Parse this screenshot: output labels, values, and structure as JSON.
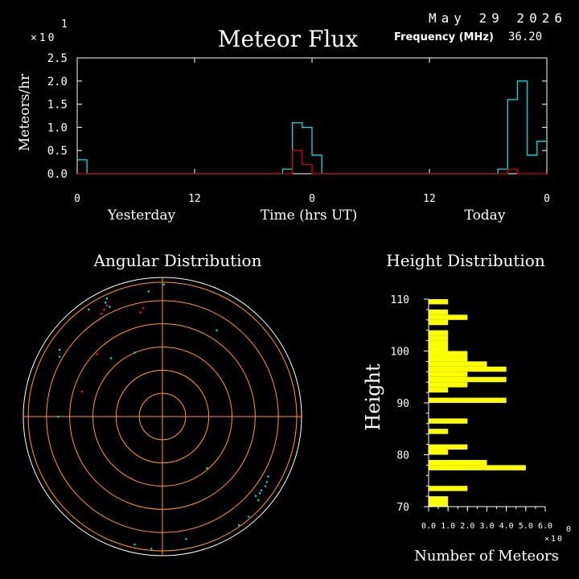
{
  "header": {
    "date": "May 29 2026",
    "title": "Meteor Flux",
    "frequency_label": "Frequency (MHz)",
    "frequency_value": "36.20",
    "y_multiplier": "×10",
    "y_exponent": "1"
  },
  "chart_data": [
    {
      "type": "line",
      "title": "Meteor Flux",
      "ylabel": "Meteors/hr",
      "xlabel": "Time (hrs UT)",
      "x_day_labels": [
        "Yesterday",
        "Today"
      ],
      "x_tick_labels": [
        "0",
        "12",
        "0",
        "12",
        "0"
      ],
      "y_tick_labels": [
        "0.0",
        "0.5",
        "1.0",
        "1.5",
        "2.0",
        "2.5"
      ],
      "ylim": [
        0,
        2.5
      ],
      "x_range_hours": [
        0,
        48
      ],
      "colors": {
        "series_1": "#00e0e0",
        "series_2": "#d00000",
        "axis": "#ffffff"
      },
      "series": [
        {
          "values": [
            0.3,
            0,
            0,
            0,
            0,
            0,
            0,
            0,
            0,
            0,
            0,
            0,
            0,
            0,
            0,
            0,
            0,
            0,
            0,
            0,
            0,
            0.1,
            1.1,
            1.0,
            0.4,
            0,
            0,
            0,
            0,
            0,
            0,
            0,
            0,
            0,
            0,
            0,
            0,
            0,
            0,
            0,
            0,
            0,
            0,
            0.1,
            1.6,
            2.0,
            0.4,
            0.7
          ]
        },
        {
          "values": [
            0,
            0,
            0,
            0,
            0,
            0,
            0,
            0,
            0,
            0,
            0,
            0,
            0,
            0,
            0,
            0,
            0,
            0,
            0,
            0,
            0,
            0,
            0.5,
            0.2,
            0,
            0,
            0,
            0,
            0,
            0,
            0,
            0,
            0,
            0,
            0,
            0,
            0,
            0,
            0,
            0,
            0,
            0,
            0,
            0,
            0.1,
            0,
            0,
            0
          ]
        }
      ]
    },
    {
      "type": "scatter",
      "title": "Angular Distribution",
      "colors": {
        "grid": "#ff9a30",
        "cyan": "#00e0e0",
        "red": "#e02020",
        "outer": "#ffffff"
      },
      "points_cyan": [
        [
          -0.38,
          0.79
        ],
        [
          -0.41,
          0.82
        ],
        [
          -0.4,
          0.85
        ],
        [
          -0.53,
          0.77
        ],
        [
          -0.1,
          0.9
        ],
        [
          0.01,
          0.95
        ],
        [
          0.39,
          0.62
        ],
        [
          -0.74,
          0.48
        ],
        [
          -0.37,
          0.42
        ],
        [
          -0.2,
          0.46
        ],
        [
          -0.74,
          0.43
        ],
        [
          -0.75,
          0.0
        ],
        [
          0.32,
          -0.37
        ],
        [
          0.67,
          -0.57
        ],
        [
          0.69,
          -0.6
        ],
        [
          0.7,
          -0.55
        ],
        [
          0.71,
          -0.53
        ],
        [
          0.74,
          -0.5
        ],
        [
          0.75,
          -0.47
        ],
        [
          0.76,
          -0.43
        ],
        [
          0.62,
          -0.72
        ],
        [
          0.55,
          -0.78
        ],
        [
          -0.2,
          -0.92
        ],
        [
          -0.08,
          -0.95
        ],
        [
          0.17,
          -0.88
        ]
      ],
      "points_red": [
        [
          -0.4,
          0.8
        ],
        [
          -0.42,
          0.77
        ],
        [
          -0.44,
          0.74
        ],
        [
          -0.14,
          0.78
        ],
        [
          -0.16,
          0.75
        ],
        [
          -0.47,
          0.45
        ],
        [
          -0.58,
          0.18
        ],
        [
          0.99,
          0.0
        ]
      ]
    },
    {
      "type": "bar",
      "title": "Height Distribution",
      "ylabel": "Height",
      "xlabel": "Number of Meteors",
      "x_tick_labels": [
        "0.0",
        "1.0",
        "2.0",
        "3.0",
        "4.0",
        "5.0",
        "6.0"
      ],
      "x_multiplier": "×10",
      "x_exponent": "0",
      "y_tick_labels": [
        "110",
        "100",
        "90",
        "80",
        "70"
      ],
      "ylim": [
        70,
        110
      ],
      "xlim": [
        0,
        6
      ],
      "bar_color": "#ffff00",
      "heights": [
        109.5,
        108.5,
        107.5,
        106.5,
        105.5,
        104.5,
        103.5,
        102.5,
        101.5,
        100.5,
        99.5,
        98.5,
        97.5,
        96.5,
        95.5,
        94.5,
        93.5,
        92.5,
        91.5,
        90.5,
        89.5,
        88.5,
        87.5,
        86.5,
        85.5,
        84.5,
        83.5,
        82.5,
        81.5,
        80.5,
        79.5,
        78.5,
        77.5,
        76.5,
        75.5,
        74.5,
        73.5,
        72.5,
        71.5,
        70.5
      ],
      "values": [
        1,
        0,
        1,
        2,
        1,
        0,
        1,
        1,
        1,
        1,
        2,
        2,
        3,
        4,
        2,
        4,
        2,
        1,
        0,
        4,
        0,
        0,
        0,
        2,
        0,
        1,
        0,
        0,
        2,
        1,
        0,
        3,
        5,
        0,
        0,
        0,
        2,
        0,
        1,
        1
      ]
    }
  ]
}
